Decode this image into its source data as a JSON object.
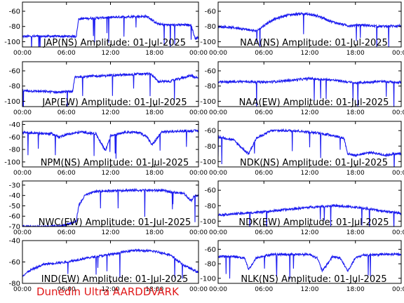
{
  "footer": "Dunedin Ultra AARDDVARK",
  "colors": {
    "trace": "#1c1cf0",
    "axes": "#000000",
    "label": "#000000",
    "footer": "#e0191a"
  },
  "chart_data": [
    {
      "type": "line",
      "title": "JAP(NS) Amplitude: 01-Jul-2025",
      "x_ticks": [
        "00:00",
        "06:00",
        "12:00",
        "18:00",
        "00:00"
      ],
      "yticks": [
        -100,
        -80,
        -60
      ],
      "ylim": [
        -107,
        -48
      ],
      "series": [
        {
          "x": [
            "00:00",
            "03:00",
            "07:20",
            "07:40",
            "12:00",
            "15:00",
            "17:00",
            "18:30",
            "20:00",
            "23:00",
            "23:30",
            "24:00"
          ],
          "values": [
            -93,
            -93,
            -93,
            -70,
            -68,
            -67,
            -67,
            -77,
            -78,
            -78,
            -95,
            -95
          ]
        }
      ]
    },
    {
      "type": "line",
      "title": "NAA(NS) Amplitude: 01-Jul-2025",
      "x_ticks": [
        "00:00",
        "06:00",
        "12:00",
        "18:00",
        "00:00"
      ],
      "yticks": [
        -100,
        -80,
        -60
      ],
      "ylim": [
        -107,
        -48
      ],
      "series": [
        {
          "x": [
            "00:00",
            "02:30",
            "05:00",
            "07:00",
            "09:00",
            "11:00",
            "13:00",
            "15:00",
            "17:00",
            "19:00",
            "21:00",
            "24:00"
          ],
          "values": [
            -80,
            -82,
            -86,
            -72,
            -65,
            -63,
            -66,
            -74,
            -79,
            -78,
            -80,
            -79
          ]
        }
      ]
    },
    {
      "type": "line",
      "title": "JAP(EW) Amplitude: 01-Jul-2025",
      "x_ticks": [
        "00:00",
        "06:00",
        "12:00",
        "18:00",
        "00:00"
      ],
      "yticks": [
        -100,
        -80,
        -60
      ],
      "ylim": [
        -107,
        -48
      ],
      "series": [
        {
          "x": [
            "00:00",
            "05:00",
            "06:50",
            "07:10",
            "12:00",
            "16:00",
            "17:30",
            "18:30",
            "20:00",
            "23:00",
            "24:00"
          ],
          "values": [
            -86,
            -88,
            -87,
            -68,
            -66,
            -64,
            -64,
            -74,
            -74,
            -66,
            -70
          ]
        }
      ]
    },
    {
      "type": "line",
      "title": "NAA(EW) Amplitude: 01-Jul-2025",
      "x_ticks": [
        "00:00",
        "06:00",
        "12:00",
        "18:00",
        "00:00"
      ],
      "yticks": [
        -100,
        -80,
        -60
      ],
      "ylim": [
        -107,
        -48
      ],
      "series": [
        {
          "x": [
            "00:00",
            "03:00",
            "06:00",
            "09:00",
            "12:00",
            "15:00",
            "18:00",
            "21:00",
            "24:00"
          ],
          "values": [
            -75,
            -74,
            -75,
            -73,
            -70,
            -72,
            -76,
            -74,
            -75
          ]
        }
      ]
    },
    {
      "type": "line",
      "title": "NPM(NS) Amplitude: 01-Jul-2025",
      "x_ticks": [
        "00:00",
        "06:00",
        "12:00",
        "18:00",
        "00:00"
      ],
      "yticks": [
        -100,
        -80,
        -60,
        -40
      ],
      "ylim": [
        -108,
        -35
      ],
      "series": [
        {
          "x": [
            "00:00",
            "04:00",
            "05:00",
            "06:00",
            "08:00",
            "10:00",
            "11:20",
            "12:00",
            "14:00",
            "16:00",
            "17:00",
            "17:40",
            "19:00",
            "21:00",
            "24:00"
          ],
          "values": [
            -53,
            -55,
            -60,
            -56,
            -52,
            -55,
            -82,
            -58,
            -52,
            -53,
            -60,
            -73,
            -52,
            -51,
            -50
          ]
        }
      ]
    },
    {
      "type": "line",
      "title": "NDK(NS) Amplitude: 01-Jul-2025",
      "x_ticks": [
        "00:00",
        "06:00",
        "12:00",
        "18:00",
        "00:00"
      ],
      "yticks": [
        -100,
        -80,
        -60
      ],
      "ylim": [
        -107,
        -48
      ],
      "series": [
        {
          "x": [
            "00:00",
            "02:00",
            "03:30",
            "04:00",
            "05:00",
            "07:00",
            "10:00",
            "13:00",
            "15:00",
            "16:30",
            "17:00",
            "18:00",
            "20:00",
            "22:00",
            "23:00"
          ],
          "values": [
            -68,
            -72,
            -86,
            -90,
            -70,
            -60,
            -60,
            -63,
            -66,
            -70,
            -90,
            -92,
            -88,
            -92,
            -90
          ]
        }
      ]
    },
    {
      "type": "line",
      "title": "NWC(EW) Amplitude: 01-Jul-2025",
      "x_ticks": [
        "00:00",
        "06:00",
        "12:00",
        "18:00",
        "00:00"
      ],
      "yticks": [
        -70,
        -60,
        -50,
        -40,
        -30
      ],
      "ylim": [
        -70,
        -26
      ],
      "series": [
        {
          "x": [
            "00:00",
            "05:00",
            "06:00",
            "07:20",
            "07:40",
            "08:30",
            "10:00",
            "14:00",
            "19:00",
            "20:30",
            "22:00",
            "23:00",
            "23:30"
          ],
          "values": [
            -70,
            -70,
            -68,
            -65,
            -50,
            -40,
            -36,
            -35,
            -35,
            -37,
            -38,
            -45,
            -40
          ]
        }
      ]
    },
    {
      "type": "line",
      "title": "NDK(EW) Amplitude: 01-Jul-2025",
      "x_ticks": [
        "00:00",
        "06:00",
        "12:00",
        "18:00",
        "00:00"
      ],
      "yticks": [
        -100,
        -80,
        -60
      ],
      "ylim": [
        -107,
        -48
      ],
      "series": [
        {
          "x": [
            "00:00",
            "03:00",
            "06:00",
            "09:00",
            "12:00",
            "15:00",
            "18:00",
            "21:00",
            "24:00"
          ],
          "values": [
            -92,
            -90,
            -88,
            -85,
            -82,
            -80,
            -82,
            -86,
            -90
          ]
        }
      ]
    },
    {
      "type": "line",
      "title": "IND(EW) Amplitude: 01-Jul-2025",
      "x_ticks": [
        "00:00",
        "06:00",
        "12:00",
        "18:00",
        "00:00"
      ],
      "yticks": [
        -80,
        -60,
        -40
      ],
      "ylim": [
        -80,
        -40
      ],
      "series": [
        {
          "x": [
            "00:00",
            "01:00",
            "03:00",
            "06:00",
            "09:00",
            "12:00",
            "15:00",
            "18:00",
            "20:00",
            "22:00",
            "24:00"
          ],
          "values": [
            -73,
            -68,
            -62,
            -60,
            -56,
            -53,
            -49,
            -50,
            -53,
            -63,
            -70
          ]
        }
      ]
    },
    {
      "type": "line",
      "title": "NLK(NS) Amplitude: 01-Jul-2025",
      "x_ticks": [
        "00:00",
        "06:00",
        "12:00",
        "18:00",
        "00:00"
      ],
      "yticks": [
        -100,
        -80,
        -60
      ],
      "ylim": [
        -107,
        -48
      ],
      "series": [
        {
          "x": [
            "00:00",
            "02:00",
            "03:30",
            "04:00",
            "05:00",
            "07:00",
            "12:00",
            "13:00",
            "13:40",
            "15:00",
            "16:00",
            "17:00",
            "18:00",
            "19:00",
            "22:00",
            "24:00"
          ],
          "values": [
            -70,
            -70,
            -72,
            -88,
            -72,
            -67,
            -67,
            -72,
            -90,
            -70,
            -72,
            -90,
            -72,
            -68,
            -67,
            -67
          ]
        }
      ]
    }
  ]
}
